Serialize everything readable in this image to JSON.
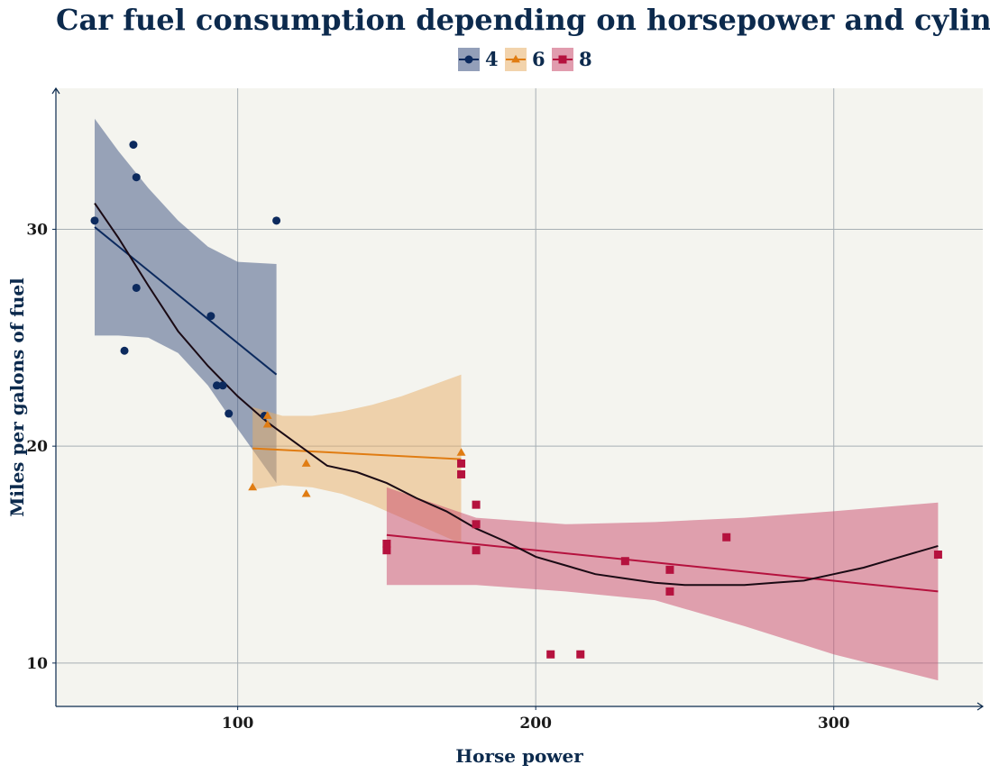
{
  "chart_data": {
    "type": "scatter",
    "title": "Car fuel consumption depending on horsepower and cylinder",
    "xlabel": "Horse power",
    "ylabel": "Miles per galons of fuel",
    "xlim": [
      39,
      350
    ],
    "ylim": [
      8,
      36.5
    ],
    "xticks": [
      100,
      200,
      300
    ],
    "yticks": [
      10,
      20,
      30
    ],
    "grid": true,
    "legend_position": "top-center",
    "background_color": "#f4f4ef",
    "series": [
      {
        "name": "4",
        "marker": "circle",
        "color": "#0c2a5e",
        "band_color": "#3a5080",
        "points": [
          [
            52,
            30.4
          ],
          [
            62,
            24.4
          ],
          [
            65,
            33.9
          ],
          [
            66,
            32.4
          ],
          [
            66,
            27.3
          ],
          [
            91,
            26.0
          ],
          [
            93,
            22.8
          ],
          [
            95,
            22.8
          ],
          [
            97,
            21.5
          ],
          [
            109,
            21.4
          ],
          [
            113,
            30.4
          ]
        ],
        "fit_line": [
          [
            52,
            30.1
          ],
          [
            113,
            23.3
          ]
        ],
        "band": {
          "x": [
            52,
            60,
            70,
            80,
            90,
            100,
            113
          ],
          "upper": [
            35.1,
            33.6,
            31.9,
            30.4,
            29.2,
            28.5,
            28.4
          ],
          "lower": [
            25.1,
            25.1,
            25.0,
            24.3,
            22.8,
            20.8,
            18.3
          ]
        }
      },
      {
        "name": "6",
        "marker": "triangle",
        "color": "#e07c12",
        "band_color": "#e7ae68",
        "points": [
          [
            105,
            18.1
          ],
          [
            110,
            21.0
          ],
          [
            110,
            21.4
          ],
          [
            123,
            19.2
          ],
          [
            123,
            17.8
          ],
          [
            175,
            19.7
          ]
        ],
        "fit_line": [
          [
            105,
            19.9
          ],
          [
            175,
            19.4
          ]
        ],
        "band": {
          "x": [
            105,
            115,
            125,
            135,
            145,
            155,
            165,
            175
          ],
          "upper": [
            21.8,
            21.4,
            21.4,
            21.6,
            21.9,
            22.3,
            22.8,
            23.3
          ],
          "lower": [
            18.0,
            18.2,
            18.1,
            17.8,
            17.3,
            16.7,
            16.1,
            15.5
          ]
        }
      },
      {
        "name": "8",
        "marker": "square",
        "color": "#b5123e",
        "band_color": "#c94a6c",
        "points": [
          [
            150,
            15.2
          ],
          [
            150,
            15.5
          ],
          [
            175,
            19.2
          ],
          [
            175,
            18.7
          ],
          [
            180,
            17.3
          ],
          [
            180,
            16.4
          ],
          [
            180,
            15.2
          ],
          [
            205,
            10.4
          ],
          [
            215,
            10.4
          ],
          [
            230,
            14.7
          ],
          [
            245,
            14.3
          ],
          [
            245,
            13.3
          ],
          [
            264,
            15.8
          ],
          [
            335,
            15.0
          ]
        ],
        "fit_line": [
          [
            150,
            15.9
          ],
          [
            335,
            13.3
          ]
        ],
        "band": {
          "x": [
            150,
            180,
            210,
            240,
            270,
            300,
            335
          ],
          "upper": [
            18.1,
            16.7,
            16.4,
            16.5,
            16.7,
            17.0,
            17.4
          ],
          "lower": [
            13.6,
            13.6,
            13.3,
            12.9,
            11.7,
            10.4,
            9.2
          ]
        }
      },
      {
        "name": "",
        "marker": "none",
        "color": "#1a0a14",
        "smooth": [
          [
            52,
            31.2
          ],
          [
            60,
            29.6
          ],
          [
            70,
            27.4
          ],
          [
            80,
            25.3
          ],
          [
            90,
            23.7
          ],
          [
            100,
            22.3
          ],
          [
            110,
            21.1
          ],
          [
            120,
            20.1
          ],
          [
            130,
            19.1
          ],
          [
            140,
            18.8
          ],
          [
            150,
            18.3
          ],
          [
            160,
            17.6
          ],
          [
            170,
            17.0
          ],
          [
            180,
            16.2
          ],
          [
            190,
            15.6
          ],
          [
            200,
            14.9
          ],
          [
            210,
            14.5
          ],
          [
            220,
            14.1
          ],
          [
            230,
            13.9
          ],
          [
            240,
            13.7
          ],
          [
            250,
            13.6
          ],
          [
            260,
            13.6
          ],
          [
            270,
            13.6
          ],
          [
            280,
            13.7
          ],
          [
            290,
            13.8
          ],
          [
            300,
            14.1
          ],
          [
            310,
            14.4
          ],
          [
            320,
            14.8
          ],
          [
            335,
            15.4
          ]
        ]
      }
    ]
  }
}
